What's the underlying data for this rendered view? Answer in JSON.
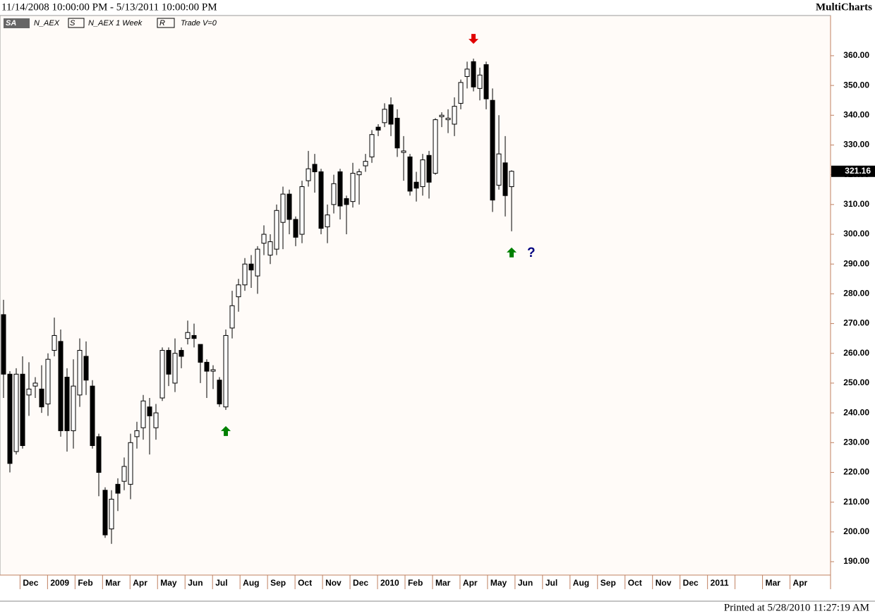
{
  "header": {
    "range": "11/14/2008 10:00:00 PM - 5/13/2011 10:00:00 PM",
    "app": "MultiCharts"
  },
  "legend": {
    "badge": "SA",
    "symbol": "N_AEX",
    "s_box": "S",
    "series_label": "N_AEX  1 Week",
    "r_box": "R",
    "mode": "Trade  V=0"
  },
  "footer": "Printed at 5/28/2010 11:27:19 AM",
  "chart_data": {
    "type": "candlestick",
    "up_color": "#ffffff",
    "down_color": "#000000",
    "open": [
      273,
      253,
      227,
      253,
      246,
      249,
      248,
      243,
      261,
      264,
      252,
      234,
      246,
      259,
      249,
      232,
      214,
      201,
      216,
      217,
      216,
      232,
      235,
      242,
      235,
      245,
      261,
      250,
      261,
      265,
      266,
      263,
      257,
      254,
      251,
      242,
      268.5,
      279,
      283,
      290,
      286,
      297,
      293,
      295,
      304,
      313.5,
      305,
      300,
      318,
      323.5,
      321,
      302.5,
      310,
      321,
      312,
      311,
      320,
      323,
      326,
      336,
      337.5,
      343.5,
      339,
      327.5,
      326,
      317.5,
      316,
      326.5,
      320.5,
      339.5,
      338.5,
      337,
      344,
      353,
      358,
      349,
      357,
      345,
      316.5,
      324,
      316
    ],
    "high": [
      278,
      254,
      255,
      259,
      257,
      252,
      256,
      260,
      272,
      268,
      255,
      258,
      265,
      264,
      251,
      233,
      215,
      214,
      218,
      225,
      233,
      237,
      246,
      245,
      243,
      262,
      262,
      265,
      262,
      271,
      270,
      263,
      258,
      256,
      252,
      268,
      281,
      285,
      292,
      293,
      296,
      303,
      300,
      310,
      316,
      315,
      306,
      318,
      328,
      327,
      322,
      310,
      320,
      322,
      313,
      324,
      322,
      327,
      335,
      337,
      344,
      346,
      342,
      333,
      327,
      321,
      327,
      328,
      339,
      341,
      342,
      346,
      352,
      358,
      359,
      356,
      358,
      349,
      340,
      333,
      321.5
    ],
    "low": [
      245,
      220,
      226,
      228,
      239,
      245,
      240,
      239,
      259,
      232,
      227,
      228,
      242,
      246,
      228,
      212,
      198,
      196,
      207,
      214,
      211,
      228,
      231,
      226,
      231,
      244,
      249,
      247,
      255,
      263,
      262,
      250,
      245,
      248,
      242,
      241,
      265,
      274,
      281,
      282,
      280,
      293,
      290,
      293,
      295,
      300,
      296,
      297,
      316,
      314,
      300,
      297,
      307,
      305,
      300,
      309,
      310,
      321,
      324,
      333,
      336,
      333,
      326,
      318,
      313,
      311,
      313,
      312,
      320,
      336,
      334,
      333,
      342,
      349,
      348,
      345,
      342,
      307.5,
      315,
      306,
      301
    ],
    "close": [
      253,
      223,
      253,
      229,
      248,
      250,
      242,
      258,
      266,
      234,
      234,
      249,
      261,
      251,
      229,
      220,
      199,
      211,
      213,
      222,
      230,
      234,
      244,
      239,
      240,
      261,
      253,
      260,
      259,
      267,
      265,
      257,
      254,
      254.5,
      243,
      266,
      276,
      283,
      290,
      288,
      295,
      300,
      297.5,
      308,
      313.5,
      305,
      299,
      316,
      322,
      321,
      302,
      306.5,
      317,
      309.5,
      310,
      320.5,
      321,
      324.5,
      333.5,
      335,
      342,
      337,
      329,
      328,
      314.5,
      315.5,
      325,
      317.5,
      338.5,
      340,
      339,
      343,
      351,
      355.5,
      349.5,
      353.5,
      345.5,
      311.5,
      327,
      313,
      321.16
    ],
    "last_price": 321.16,
    "ylim": [
      185.5,
      373.5
    ],
    "yticks": [
      {
        "value": 190,
        "label": "190.00"
      },
      {
        "value": 200,
        "label": "200.00"
      },
      {
        "value": 210,
        "label": "210.00"
      },
      {
        "value": 220,
        "label": "220.00"
      },
      {
        "value": 230,
        "label": "230.00"
      },
      {
        "value": 240,
        "label": "240.00"
      },
      {
        "value": 250,
        "label": "250.00"
      },
      {
        "value": 260,
        "label": "260.00"
      },
      {
        "value": 270,
        "label": "270.00"
      },
      {
        "value": 280,
        "label": "280.00"
      },
      {
        "value": 290,
        "label": "290.00"
      },
      {
        "value": 300,
        "label": "300.00"
      },
      {
        "value": 310,
        "label": "310.00"
      },
      {
        "value": 320,
        "label": "320.00"
      },
      {
        "value": 330,
        "label": "330.00"
      },
      {
        "value": 340,
        "label": "340.00"
      },
      {
        "value": 350,
        "label": "350.00"
      },
      {
        "value": 360,
        "label": "360.00"
      }
    ],
    "months": [
      "Dec",
      "2009",
      "Feb",
      "Mar",
      "Apr",
      "May",
      "Jun",
      "Jul",
      "Aug",
      "Sep",
      "Oct",
      "Nov",
      "Dec",
      "2010",
      "Feb",
      "Mar",
      "Apr",
      "May",
      "Jun",
      "Jul",
      "Aug",
      "Sep",
      "Oct",
      "Nov",
      "Dec",
      "2011",
      null,
      "Mar",
      "Apr"
    ],
    "signals": [
      {
        "bar": 35,
        "direction": "up",
        "color": "#008000"
      },
      {
        "bar": 74,
        "direction": "down",
        "color": "#e00000"
      },
      {
        "bar": 80,
        "direction": "up",
        "color": "#008000"
      }
    ],
    "annotation": {
      "text": "?",
      "color": "#000080"
    }
  }
}
